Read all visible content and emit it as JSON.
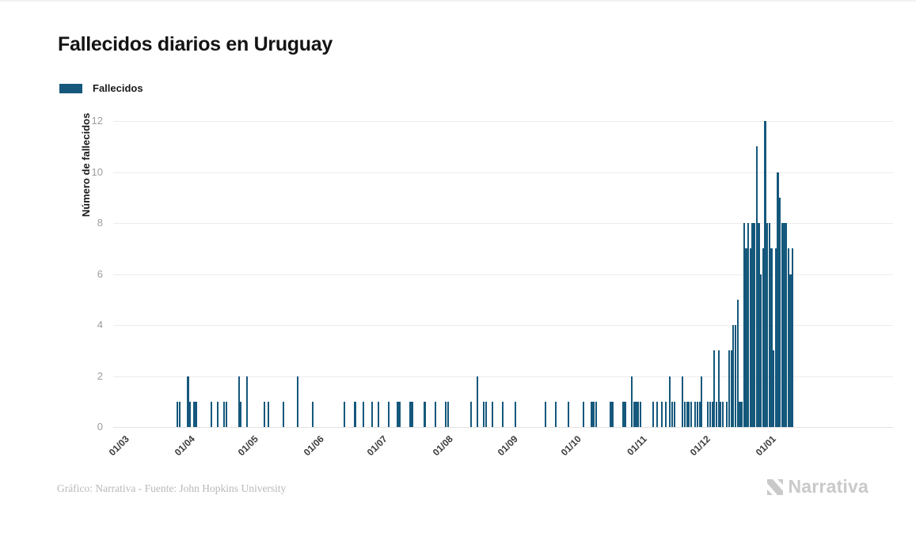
{
  "header": {
    "title": "Fallecidos diarios en Uruguay"
  },
  "legend": {
    "label": "Fallecidos",
    "swatch_color": "#15587C"
  },
  "footer": {
    "credit": "Gráfico: Narrativa - Fuente: John Hopkins University",
    "brand": "Narrativa"
  },
  "colors": {
    "bar": "#15587C",
    "gridline": "#ececec",
    "ytick_text": "#9c9c9c",
    "xtick_text": "#3b3b3b",
    "credit_text": "#b9b9b9",
    "brand_text": "#c9c9c9"
  },
  "chart_data": {
    "type": "bar",
    "title": "Fallecidos diarios en Uruguay",
    "xlabel": "",
    "ylabel": "Número de fallecidos",
    "ylim": [
      0,
      12
    ],
    "yticks": [
      0,
      2,
      4,
      6,
      8,
      10,
      12
    ],
    "grid": true,
    "legend_position": "top-left",
    "series_name": "Fallecidos",
    "bar_color": "#15587C",
    "x_unit": "day",
    "xtick_labels": [
      "01/03",
      "01/04",
      "01/05",
      "01/06",
      "01/07",
      "01/08",
      "01/09",
      "01/10",
      "01/11",
      "01/12",
      "01/01"
    ],
    "xtick_day_index": [
      0,
      31,
      61,
      92,
      122,
      153,
      184,
      214,
      245,
      275,
      306
    ],
    "values": [
      0,
      0,
      0,
      0,
      0,
      0,
      0,
      0,
      0,
      0,
      0,
      0,
      0,
      0,
      0,
      0,
      0,
      0,
      0,
      0,
      0,
      0,
      0,
      0,
      0,
      0,
      0,
      0,
      0,
      0,
      1,
      1,
      0,
      0,
      0,
      2,
      1,
      0,
      1,
      1,
      0,
      0,
      0,
      0,
      0,
      0,
      1,
      0,
      0,
      1,
      0,
      0,
      1,
      1,
      0,
      0,
      0,
      0,
      0,
      2,
      1,
      0,
      0,
      2,
      0,
      0,
      0,
      0,
      0,
      0,
      0,
      1,
      0,
      1,
      0,
      0,
      0,
      0,
      0,
      0,
      1,
      0,
      0,
      0,
      0,
      0,
      0,
      2,
      0,
      0,
      0,
      0,
      0,
      0,
      1,
      0,
      0,
      0,
      0,
      0,
      0,
      0,
      0,
      0,
      0,
      0,
      0,
      0,
      0,
      1,
      0,
      0,
      0,
      0,
      1,
      0,
      0,
      0,
      1,
      0,
      0,
      0,
      1,
      0,
      0,
      1,
      0,
      0,
      0,
      0,
      1,
      0,
      0,
      0,
      1,
      1,
      0,
      0,
      0,
      0,
      1,
      1,
      0,
      0,
      0,
      0,
      0,
      1,
      0,
      0,
      0,
      0,
      1,
      0,
      0,
      0,
      0,
      1,
      1,
      0,
      0,
      0,
      0,
      0,
      0,
      0,
      0,
      0,
      0,
      1,
      0,
      0,
      2,
      0,
      0,
      1,
      1,
      0,
      0,
      1,
      0,
      0,
      0,
      0,
      1,
      0,
      0,
      0,
      0,
      0,
      1,
      0,
      0,
      0,
      0,
      0,
      0,
      0,
      0,
      0,
      0,
      0,
      0,
      0,
      1,
      0,
      0,
      0,
      0,
      1,
      0,
      0,
      0,
      0,
      0,
      1,
      0,
      0,
      0,
      0,
      0,
      0,
      1,
      0,
      0,
      0,
      1,
      1,
      1,
      0,
      0,
      0,
      0,
      0,
      0,
      1,
      1,
      0,
      0,
      0,
      0,
      1,
      1,
      0,
      0,
      2,
      1,
      1,
      1,
      1,
      0,
      0,
      0,
      0,
      0,
      1,
      0,
      1,
      0,
      1,
      0,
      1,
      0,
      2,
      1,
      1,
      0,
      0,
      0,
      2,
      1,
      1,
      1,
      1,
      0,
      1,
      1,
      1,
      2,
      0,
      0,
      1,
      1,
      1,
      3,
      1,
      3,
      1,
      1,
      0,
      1,
      3,
      3,
      4,
      4,
      5,
      1,
      1,
      8,
      7,
      8,
      7,
      8,
      8,
      11,
      8,
      6,
      7,
      12,
      8,
      8,
      7,
      3,
      7,
      10,
      9,
      8,
      8,
      8,
      7,
      6,
      7
    ]
  }
}
